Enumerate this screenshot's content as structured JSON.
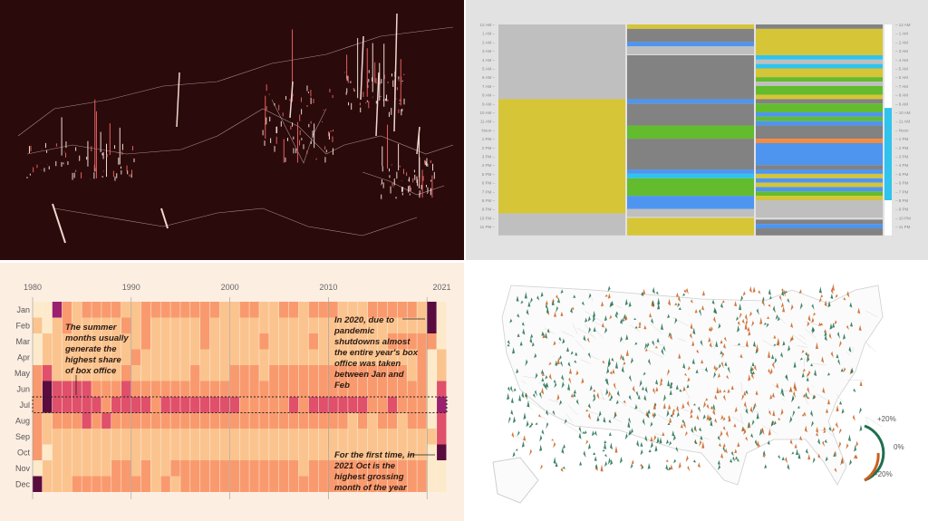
{
  "chart_data": [
    {
      "type": "other",
      "description_kind": "3d spike map",
      "colors": {
        "background": "#2b0a0b",
        "spike": "#f0d8d0",
        "accent": "#e06060"
      }
    },
    {
      "type": "bar",
      "orientation": "stacked-vertical-timeline",
      "hour_labels_left": [
        "12 AM",
        "1 AM",
        "2 AM",
        "3 AM",
        "4 AM",
        "5 AM",
        "6 AM",
        "7 AM",
        "8 AM",
        "9 AM",
        "10 AM",
        "11 AM",
        "Noon",
        "1 PM",
        "2 PM",
        "3 PM",
        "4 PM",
        "5 PM",
        "6 PM",
        "7 PM",
        "8 PM",
        "9 PM",
        "10 PM",
        "11 PM"
      ],
      "colors": {
        "lightgray": "#bfbfbf",
        "darkgray": "#828282",
        "yellow": "#d6c536",
        "blue": "#4e95f0",
        "cyan": "#2fc3ee",
        "green": "#63bb2e",
        "orange": "#f58a3e",
        "white": "#ffffff"
      },
      "columns": [
        [
          [
            0,
            8.5,
            "lightgray"
          ],
          [
            8.5,
            21.5,
            "yellow"
          ],
          [
            21.5,
            24,
            "lightgray"
          ]
        ],
        [
          [
            0,
            0.5,
            "yellow"
          ],
          [
            0.5,
            2,
            "darkgray"
          ],
          [
            2,
            2.5,
            "blue"
          ],
          [
            2.5,
            3.4,
            "lightgray"
          ],
          [
            3.5,
            8.5,
            "darkgray"
          ],
          [
            8.5,
            9,
            "blue"
          ],
          [
            9,
            11.5,
            "darkgray"
          ],
          [
            11.5,
            13,
            "green"
          ],
          [
            13,
            16.5,
            "darkgray"
          ],
          [
            16.5,
            17,
            "blue"
          ],
          [
            17,
            17.5,
            "cyan"
          ],
          [
            17.5,
            19.5,
            "green"
          ],
          [
            19.5,
            21,
            "blue"
          ],
          [
            21,
            21.9,
            "lightgray"
          ],
          [
            22,
            24,
            "yellow"
          ]
        ],
        [
          [
            0,
            0.5,
            "darkgray"
          ],
          [
            0.5,
            3.5,
            "yellow"
          ],
          [
            3.5,
            4,
            "cyan"
          ],
          [
            4,
            4.5,
            "lightgray"
          ],
          [
            4.5,
            5,
            "cyan"
          ],
          [
            5,
            6,
            "yellow"
          ],
          [
            6,
            6.5,
            "green"
          ],
          [
            6.5,
            7,
            "lightgray"
          ],
          [
            7,
            8,
            "green"
          ],
          [
            8,
            8.5,
            "yellow"
          ],
          [
            8.5,
            9,
            "darkgray"
          ],
          [
            9,
            10,
            "green"
          ],
          [
            10,
            10.5,
            "blue"
          ],
          [
            10.5,
            11,
            "green"
          ],
          [
            11,
            11.5,
            "blue"
          ],
          [
            11.5,
            13,
            "darkgray"
          ],
          [
            13,
            13.5,
            "orange"
          ],
          [
            13.5,
            16,
            "blue"
          ],
          [
            16,
            16.5,
            "darkgray"
          ],
          [
            16.5,
            17,
            "blue"
          ],
          [
            17,
            17.5,
            "yellow"
          ],
          [
            17.5,
            18,
            "blue"
          ],
          [
            18,
            18.5,
            "yellow"
          ],
          [
            18.5,
            19,
            "blue"
          ],
          [
            19,
            19.5,
            "green"
          ],
          [
            19.5,
            20,
            "yellow"
          ],
          [
            20,
            22,
            "lightgray"
          ],
          [
            22.2,
            22.7,
            "darkgray"
          ],
          [
            22.7,
            23.2,
            "blue"
          ],
          [
            23.2,
            24,
            "darkgray"
          ]
        ],
        [
          [
            0,
            9.5,
            "white"
          ],
          [
            9.5,
            20,
            "cyan"
          ],
          [
            20,
            24,
            "white"
          ]
        ]
      ]
    },
    {
      "type": "heatmap",
      "x_tick_labels": [
        "1980",
        "1990",
        "2000",
        "2010",
        "2021"
      ],
      "year_start": 1980,
      "year_end": 2021,
      "months": [
        "Jan",
        "Feb",
        "Mar",
        "Apr",
        "May",
        "Jun",
        "Jul",
        "Aug",
        "Sep",
        "Oct",
        "Nov",
        "Dec"
      ],
      "level_colors": [
        "#fdeacb",
        "#fbc48f",
        "#f99a6e",
        "#e0506a",
        "#9b2070",
        "#5a0c3e"
      ],
      "levels": [
        "004212222112222222211221122122211122222150",
        "101211111212111112111111111111111111111150",
        "011111111112111112111112111121111111222220",
        "011111111121111111111111111111111111111201",
        "231111111211111121112221222222222222221201",
        "253333222322222222222222222222222222222203",
        "253333323333233333333222223233333322322204",
        "212223232222222222222222222222221212212203",
        "211111111111111111111111111111111111111113",
        "201111111111111111111111111111111111111105",
        "011111112212112222222222222122222222222200",
        "511122222222121222222222222222222222222200"
      ],
      "highlight_row": "Jul",
      "annotations": [
        "The summer months usually generate the highest share of box office",
        "In 2020, due to pandemic shutdowns almost the entire year's box office was taken between Jan and Feb",
        "For the first time, in 2021 Oct is the highest grossing month of the year"
      ]
    },
    {
      "type": "other",
      "description_kind": "spike map of US counties",
      "legend": {
        "top": "+20%",
        "mid": "0%",
        "bottom": "-20%"
      },
      "colors": {
        "positive": "#1f6e4e",
        "negative": "#c8601e",
        "border": "#cfcfcf"
      }
    }
  ]
}
